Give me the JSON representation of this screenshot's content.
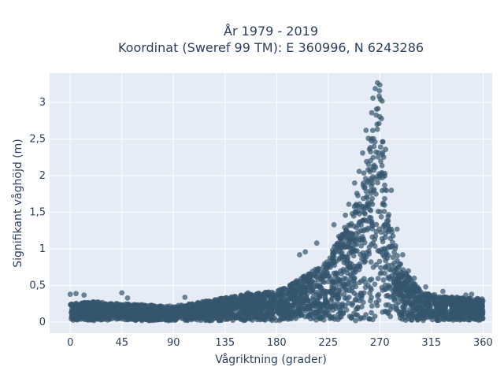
{
  "chart_data": {
    "type": "scatter",
    "title_line1": "År 1979 - 2019",
    "title_line2": "Koordinat (Sweref 99 TM): E 360996, N 6243286",
    "xlabel": "Vågriktning (grader)",
    "ylabel": "Signifikant våghöjd (m)",
    "xlim": [
      -18,
      368
    ],
    "ylim": [
      -0.15,
      3.4
    ],
    "x_ticks": [
      0,
      45,
      90,
      135,
      180,
      225,
      270,
      315,
      360
    ],
    "x_tick_labels": [
      "0",
      "45",
      "90",
      "135",
      "180",
      "225",
      "270",
      "315",
      "360"
    ],
    "y_ticks": [
      0,
      0.5,
      1,
      1.5,
      2,
      2.5,
      3
    ],
    "y_tick_labels": [
      "0",
      "0,5",
      "1",
      "1,5",
      "2",
      "2,5",
      "3"
    ],
    "grid": true,
    "colors": {
      "marker": "#34566e",
      "plot_background": "#e5ecf6",
      "grid": "#ffffff",
      "text": "#2a3f5f"
    },
    "envelope": {
      "x": [
        0,
        20,
        45,
        90,
        135,
        160,
        180,
        200,
        215,
        225,
        235,
        245,
        252,
        258,
        262,
        265,
        267,
        268,
        270,
        272,
        274,
        278,
        282,
        288,
        295,
        305,
        315,
        330,
        345,
        360
      ],
      "y_upper": [
        0.25,
        0.28,
        0.25,
        0.22,
        0.33,
        0.4,
        0.42,
        0.6,
        0.75,
        0.85,
        1.2,
        1.45,
        1.8,
        2.2,
        2.55,
        2.95,
        3.1,
        3.27,
        3.15,
        2.7,
        2.2,
        1.6,
        1.15,
        0.8,
        0.62,
        0.45,
        0.38,
        0.35,
        0.33,
        0.32
      ]
    },
    "outliers": {
      "x": [
        0,
        5,
        12,
        45,
        50,
        100,
        155,
        200,
        205,
        215,
        230,
        240,
        243,
        248,
        250,
        252,
        255,
        258,
        260,
        263,
        264,
        266,
        268,
        270,
        272,
        275,
        280,
        285,
        290,
        295,
        300,
        310,
        325,
        345,
        350
      ],
      "y": [
        0.38,
        0.39,
        0.37,
        0.4,
        0.33,
        0.34,
        0.4,
        0.92,
        0.96,
        1.08,
        1.33,
        1.46,
        1.61,
        1.9,
        1.76,
        2.06,
        2.31,
        2.62,
        2.51,
        2.86,
        3.06,
        3.19,
        3.27,
        3.24,
        3.02,
        2.36,
        1.8,
        1.27,
        0.92,
        0.7,
        0.6,
        0.48,
        0.42,
        0.37,
        0.38
      ]
    }
  }
}
